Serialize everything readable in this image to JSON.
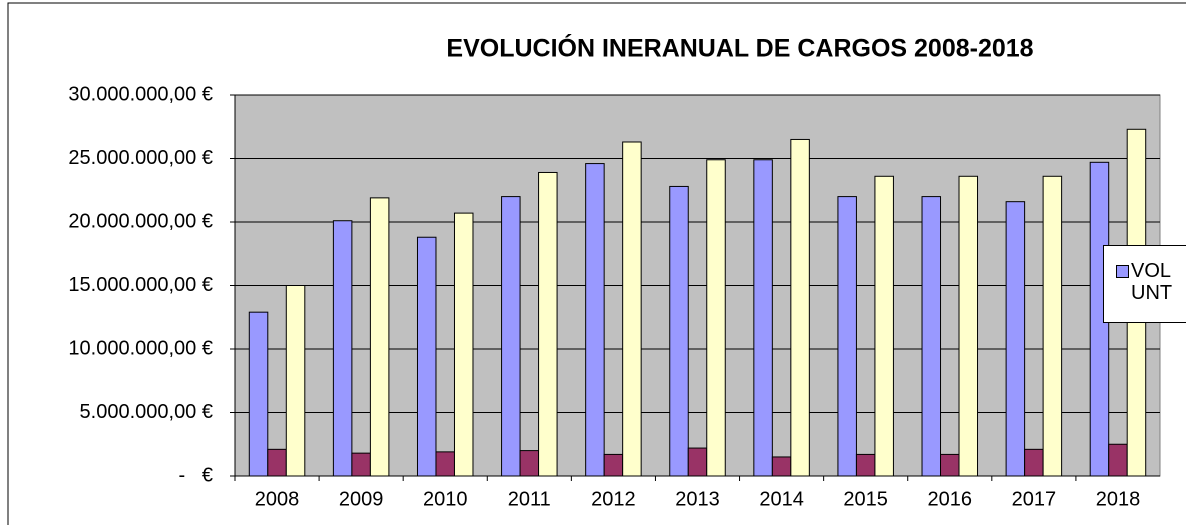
{
  "chart_data": {
    "type": "bar",
    "title": "EVOLUCIÓN INERANUAL DE CARGOS 2008-2018",
    "categories": [
      "2008",
      "2009",
      "2010",
      "2011",
      "2012",
      "2013",
      "2014",
      "2015",
      "2016",
      "2017",
      "2018"
    ],
    "series": [
      {
        "name": "VOL UNT",
        "color": "#9999ff",
        "values": [
          12900000,
          20100000,
          18800000,
          22000000,
          24600000,
          22800000,
          24900000,
          22000000,
          22000000,
          21600000,
          24700000
        ]
      },
      {
        "color": "#993366",
        "values": [
          2100000,
          1800000,
          1900000,
          2000000,
          1700000,
          2200000,
          1500000,
          1700000,
          1700000,
          2100000,
          2500000
        ]
      },
      {
        "color": "#ffffcc",
        "values": [
          15000000,
          21900000,
          20700000,
          23900000,
          26300000,
          24900000,
          26500000,
          23600000,
          23600000,
          23600000,
          27300000
        ]
      }
    ],
    "ylim": [
      0,
      30000000
    ],
    "yticks": [
      {
        "value": 0,
        "label": "-   €"
      },
      {
        "value": 5000000,
        "label": "5.000.000,00 €"
      },
      {
        "value": 10000000,
        "label": "10.000.000,00 €"
      },
      {
        "value": 15000000,
        "label": "15.000.000,00 €"
      },
      {
        "value": 20000000,
        "label": "20.000.000,00 €"
      },
      {
        "value": 25000000,
        "label": "25.000.000,00 €"
      },
      {
        "value": 30000000,
        "label": "30.000.000,00 €"
      }
    ],
    "grid": true,
    "plot_background": "#c0c0c0",
    "legend": "right"
  }
}
